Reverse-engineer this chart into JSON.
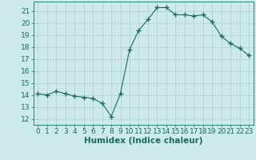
{
  "x": [
    0,
    1,
    2,
    3,
    4,
    5,
    6,
    7,
    8,
    9,
    10,
    11,
    12,
    13,
    14,
    15,
    16,
    17,
    18,
    19,
    20,
    21,
    22,
    23
  ],
  "y": [
    14.1,
    14.0,
    14.3,
    14.1,
    13.9,
    13.8,
    13.7,
    13.3,
    12.2,
    14.1,
    17.8,
    19.4,
    20.3,
    21.3,
    21.3,
    20.7,
    20.7,
    20.6,
    20.7,
    20.1,
    18.9,
    18.3,
    17.9,
    17.3
  ],
  "line_color": "#1a6b5a",
  "marker": "+",
  "marker_size": 4,
  "bg_color": "#cceaea",
  "grid_color": "#b0cccc",
  "xlabel": "Humidex (Indice chaleur)",
  "xlim": [
    -0.5,
    23.5
  ],
  "ylim": [
    11.5,
    21.8
  ],
  "yticks": [
    12,
    13,
    14,
    15,
    16,
    17,
    18,
    19,
    20,
    21
  ],
  "xticks": [
    0,
    1,
    2,
    3,
    4,
    5,
    6,
    7,
    8,
    9,
    10,
    11,
    12,
    13,
    14,
    15,
    16,
    17,
    18,
    19,
    20,
    21,
    22,
    23
  ],
  "font_size": 6.5,
  "label_fontsize": 7.5,
  "linewidth": 0.8,
  "marker_linewidth": 1.0
}
